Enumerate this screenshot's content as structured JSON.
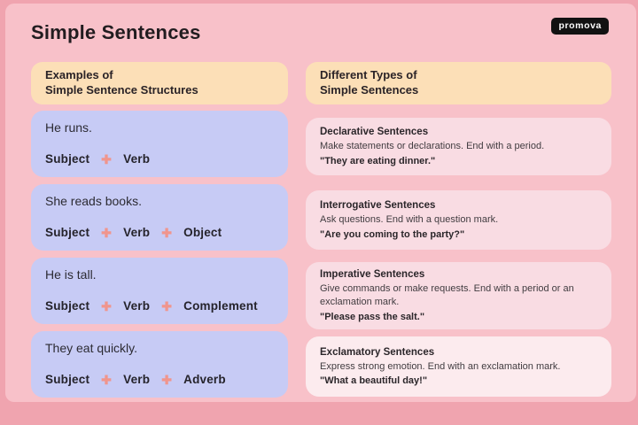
{
  "header": {
    "title": "Simple Sentences",
    "logo": "promova"
  },
  "icons": {
    "plus": "✚"
  },
  "colors": {
    "background": "#f0a4af",
    "panel": "#f8c1c9",
    "header_box": "#fcdfb7",
    "example_card": "#c7cbf5",
    "type_card": "#f9dce3",
    "type_card_light": "#fcebee",
    "plus_icon": "#f0958d",
    "logo_background": "#121212",
    "logo_text": "#ffffff",
    "text_dark": "#211c1f"
  },
  "left_column": {
    "header_line1": "Examples of",
    "header_line2": "Simple Sentence Structures",
    "cards": [
      {
        "sentence": "He runs.",
        "parts": [
          "Subject",
          "Verb"
        ]
      },
      {
        "sentence": "She reads books.",
        "parts": [
          "Subject",
          "Verb",
          "Object"
        ]
      },
      {
        "sentence": "He is tall.",
        "parts": [
          "Subject",
          "Verb",
          "Complement"
        ]
      },
      {
        "sentence": "They eat quickly.",
        "parts": [
          "Subject",
          "Verb",
          "Adverb"
        ]
      }
    ]
  },
  "right_column": {
    "header_line1": "Different Types of",
    "header_line2": "Simple Sentences",
    "cards": [
      {
        "title": "Declarative Sentences",
        "description": "Make statements or declarations. End with a period.",
        "example": "\"They are eating dinner.\""
      },
      {
        "title": "Interrogative Sentences",
        "description": "Ask questions. End with a question mark.",
        "example": "\"Are you coming to the party?\""
      },
      {
        "title": "Imperative Sentences",
        "description": "Give commands or make requests. End with a period or an exclamation mark.",
        "example": "\"Please pass the salt.\""
      },
      {
        "title": "Exclamatory Sentences",
        "description": "Express strong emotion. End with an exclamation mark.",
        "example": "\"What a beautiful day!\""
      }
    ]
  }
}
